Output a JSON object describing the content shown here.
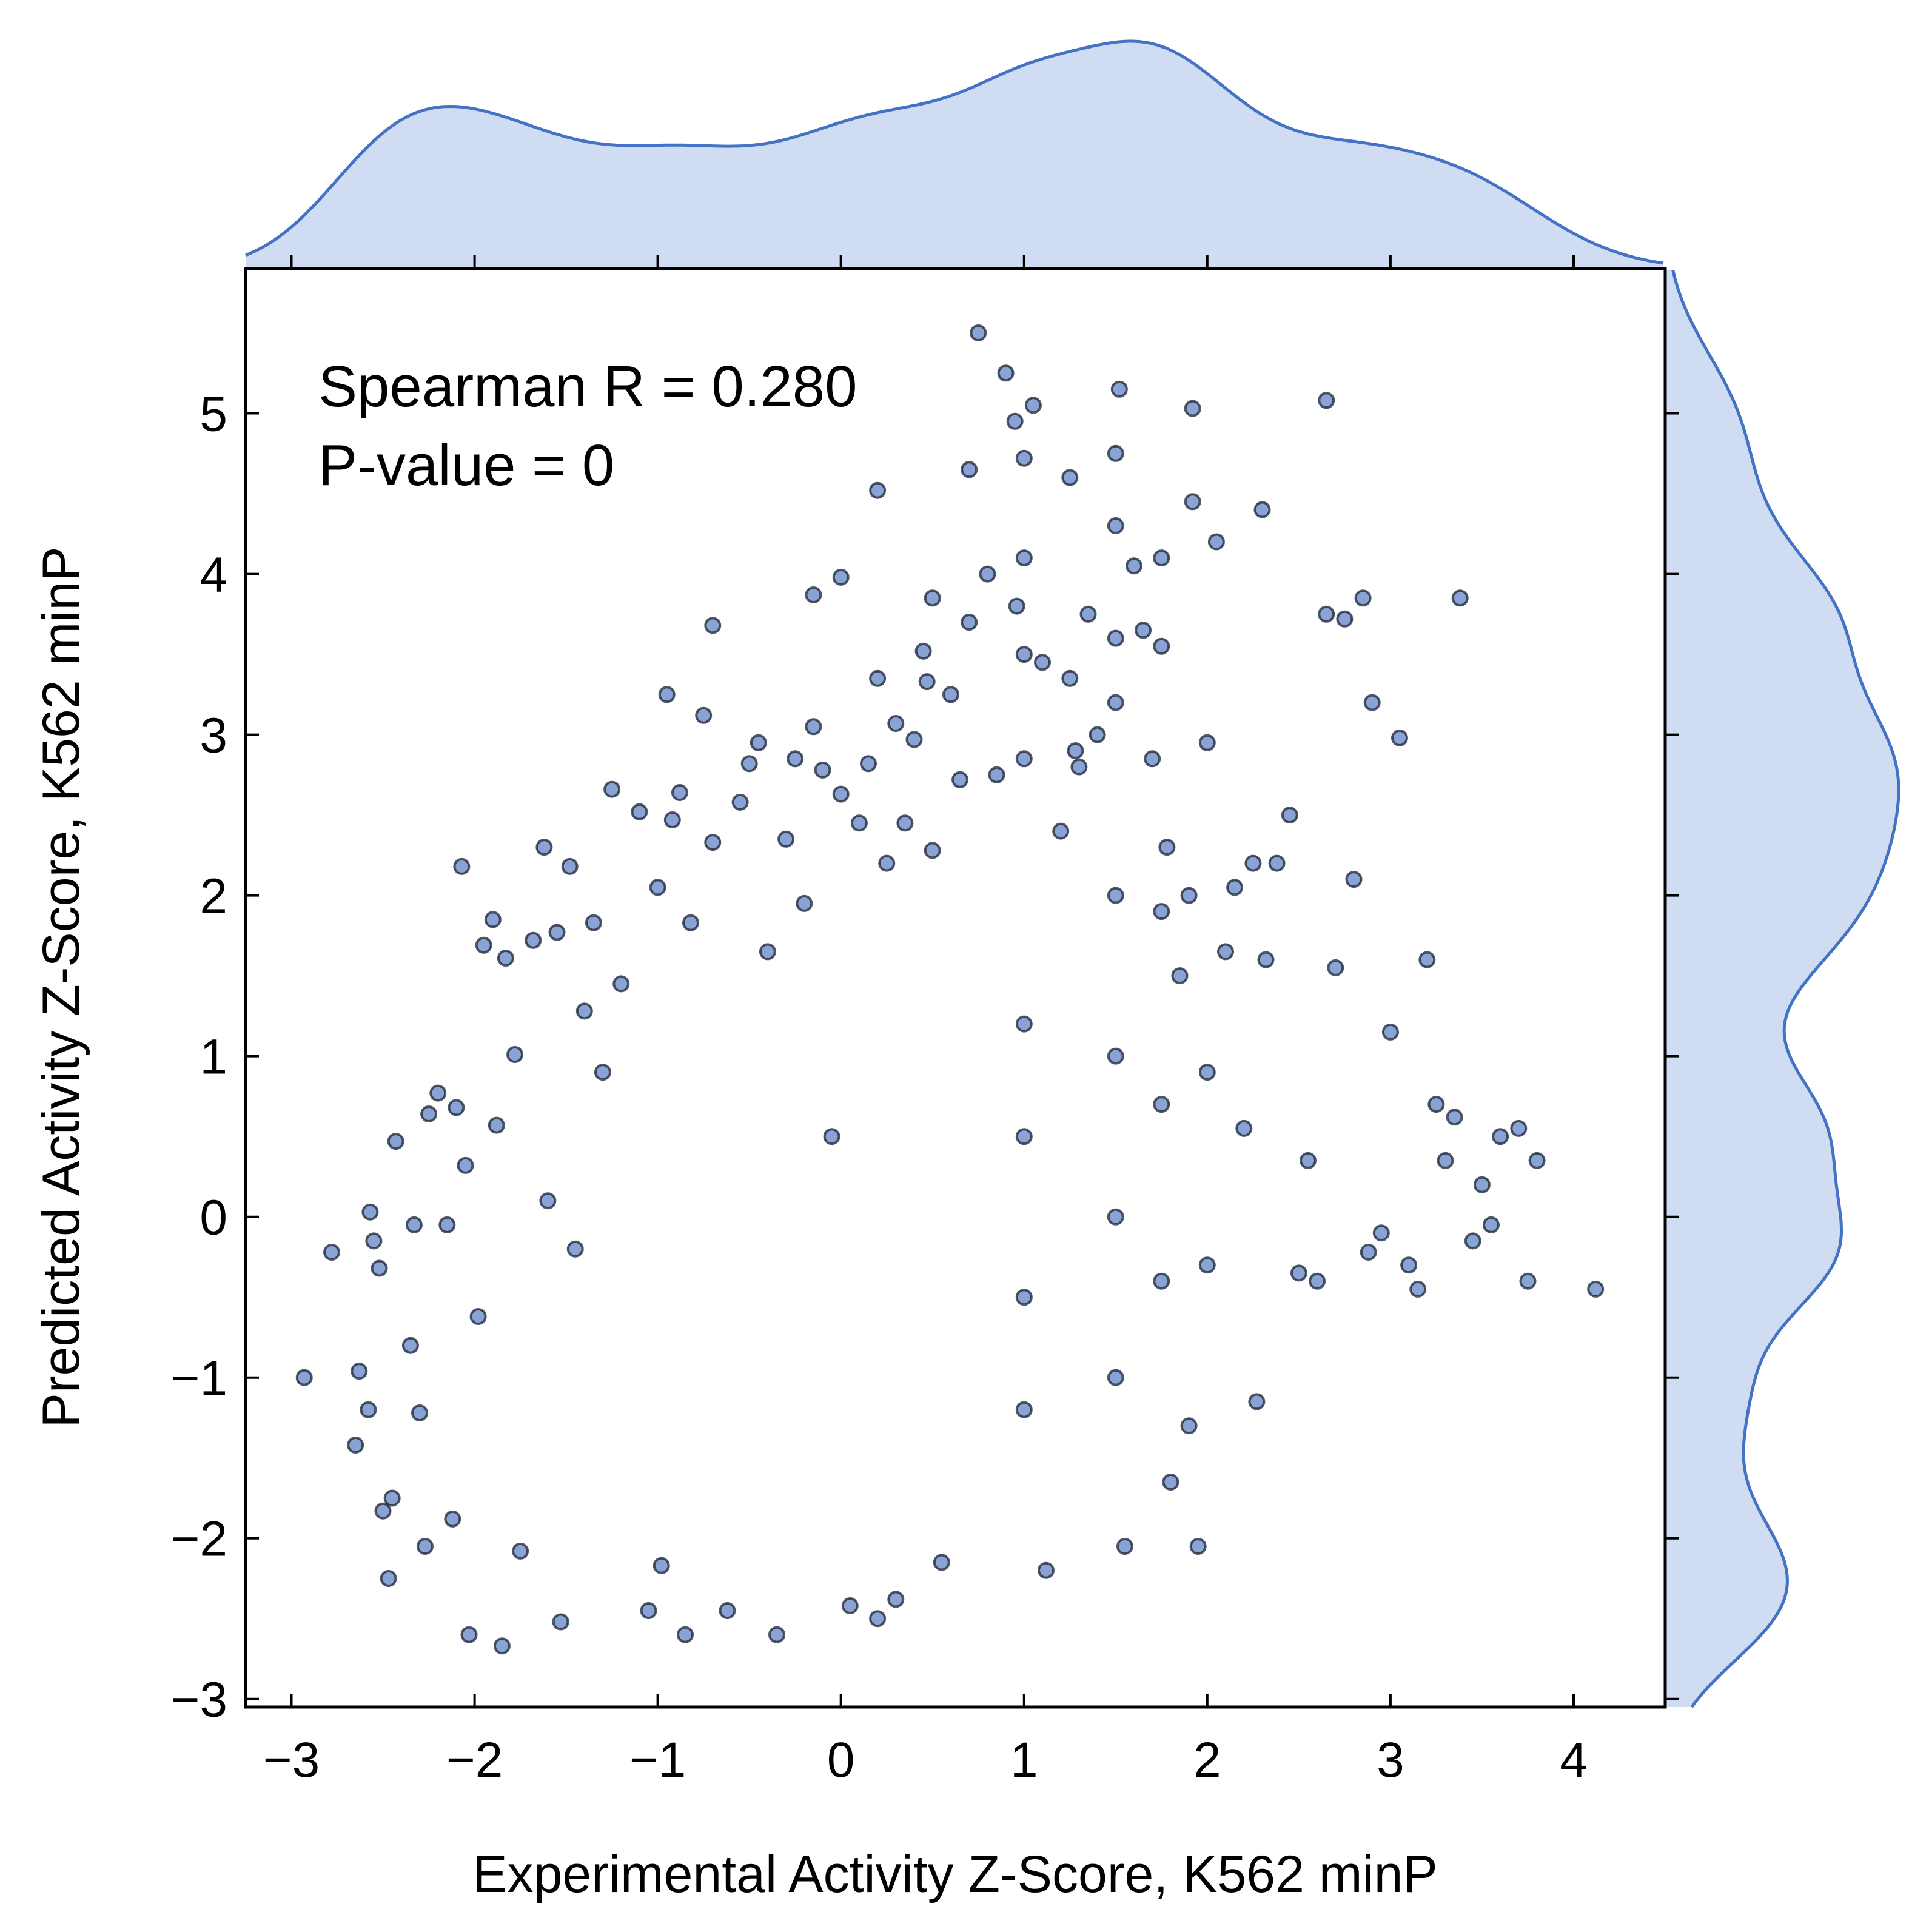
{
  "chart_data": {
    "type": "scatter",
    "xlabel": "Experimental Activity Z-Score, K562 minP",
    "ylabel": "Predicted Activity Z-Score, K562 minP",
    "xlim": [
      -3.25,
      4.5
    ],
    "ylim": [
      -3.05,
      5.9
    ],
    "x_ticks": [
      -3,
      -2,
      -1,
      0,
      1,
      2,
      3,
      4
    ],
    "y_ticks": [
      -3,
      -2,
      -1,
      0,
      1,
      2,
      3,
      4,
      5
    ],
    "x_tick_labels": [
      "−3",
      "−2",
      "−1",
      "0",
      "1",
      "2",
      "3",
      "4"
    ],
    "y_tick_labels": [
      "−3",
      "−2",
      "−1",
      "0",
      "1",
      "2",
      "3",
      "4",
      "5"
    ],
    "grid": false,
    "legend": "none",
    "annotations": [
      "Spearman R = 0.280",
      "P-value = 0"
    ],
    "marker_fill": "#5b7fc4",
    "marker_edge": "#1a2233",
    "kde_color": "#4472c4",
    "kde_fill": "#cfdcf2",
    "points": [
      [
        -2.93,
        -1.0
      ],
      [
        -2.78,
        -0.22
      ],
      [
        -2.65,
        -1.42
      ],
      [
        -2.63,
        -0.96
      ],
      [
        -2.58,
        -1.2
      ],
      [
        -2.57,
        0.03
      ],
      [
        -2.55,
        -0.15
      ],
      [
        -2.52,
        -0.32
      ],
      [
        -2.5,
        -1.83
      ],
      [
        -2.47,
        -2.25
      ],
      [
        -2.45,
        -1.75
      ],
      [
        -2.43,
        0.47
      ],
      [
        -2.35,
        -0.8
      ],
      [
        -2.33,
        -0.05
      ],
      [
        -2.3,
        -1.22
      ],
      [
        -2.27,
        -2.05
      ],
      [
        -2.25,
        0.64
      ],
      [
        -2.2,
        0.77
      ],
      [
        -2.15,
        -0.05
      ],
      [
        -2.12,
        -1.88
      ],
      [
        -2.1,
        0.68
      ],
      [
        -2.07,
        2.18
      ],
      [
        -2.05,
        0.32
      ],
      [
        -2.03,
        -2.6
      ],
      [
        -1.98,
        -0.62
      ],
      [
        -1.95,
        1.69
      ],
      [
        -1.9,
        1.85
      ],
      [
        -1.88,
        0.57
      ],
      [
        -1.85,
        -2.67
      ],
      [
        -1.83,
        1.61
      ],
      [
        -1.78,
        1.01
      ],
      [
        -1.75,
        -2.08
      ],
      [
        -1.68,
        1.72
      ],
      [
        -1.62,
        2.3
      ],
      [
        -1.6,
        0.1
      ],
      [
        -1.55,
        1.77
      ],
      [
        -1.53,
        -2.52
      ],
      [
        -1.48,
        2.18
      ],
      [
        -1.45,
        -0.2
      ],
      [
        -1.4,
        1.28
      ],
      [
        -1.35,
        1.83
      ],
      [
        -1.3,
        0.9
      ],
      [
        -1.25,
        2.66
      ],
      [
        -1.2,
        1.45
      ],
      [
        -1.1,
        2.52
      ],
      [
        -1.05,
        -2.45
      ],
      [
        -1.0,
        2.05
      ],
      [
        -0.98,
        -2.17
      ],
      [
        -0.95,
        3.25
      ],
      [
        -0.92,
        2.47
      ],
      [
        -0.88,
        2.64
      ],
      [
        -0.85,
        -2.6
      ],
      [
        -0.82,
        1.83
      ],
      [
        -0.75,
        3.12
      ],
      [
        -0.7,
        2.33
      ],
      [
        -0.7,
        3.68
      ],
      [
        -0.62,
        -2.45
      ],
      [
        -0.55,
        2.58
      ],
      [
        -0.5,
        2.82
      ],
      [
        -0.45,
        2.95
      ],
      [
        -0.4,
        1.65
      ],
      [
        -0.35,
        -2.6
      ],
      [
        -0.3,
        2.35
      ],
      [
        -0.25,
        2.85
      ],
      [
        -0.2,
        1.95
      ],
      [
        -0.15,
        3.05
      ],
      [
        -0.15,
        3.87
      ],
      [
        -0.1,
        2.78
      ],
      [
        -0.05,
        0.5
      ],
      [
        0.0,
        2.63
      ],
      [
        0.0,
        3.98
      ],
      [
        0.05,
        -2.42
      ],
      [
        0.1,
        2.45
      ],
      [
        0.15,
        2.82
      ],
      [
        0.2,
        -2.5
      ],
      [
        0.2,
        3.35
      ],
      [
        0.2,
        4.52
      ],
      [
        0.25,
        2.2
      ],
      [
        0.3,
        -2.38
      ],
      [
        0.3,
        3.07
      ],
      [
        0.35,
        2.45
      ],
      [
        0.4,
        2.97
      ],
      [
        0.45,
        3.52
      ],
      [
        0.47,
        3.33
      ],
      [
        0.5,
        2.28
      ],
      [
        0.5,
        3.85
      ],
      [
        0.55,
        -2.15
      ],
      [
        0.6,
        3.25
      ],
      [
        0.65,
        2.72
      ],
      [
        0.7,
        3.7
      ],
      [
        0.7,
        4.65
      ],
      [
        0.75,
        5.5
      ],
      [
        0.8,
        4.0
      ],
      [
        0.85,
        2.75
      ],
      [
        0.9,
        5.25
      ],
      [
        0.95,
        4.95
      ],
      [
        0.96,
        3.8
      ],
      [
        1.0,
        1.2
      ],
      [
        1.0,
        0.5
      ],
      [
        1.0,
        -0.5
      ],
      [
        1.0,
        -1.2
      ],
      [
        1.0,
        2.85
      ],
      [
        1.0,
        3.5
      ],
      [
        1.0,
        4.1
      ],
      [
        1.0,
        4.72
      ],
      [
        1.05,
        5.05
      ],
      [
        1.1,
        3.45
      ],
      [
        1.12,
        -2.2
      ],
      [
        1.2,
        2.4
      ],
      [
        1.25,
        3.35
      ],
      [
        1.25,
        4.6
      ],
      [
        1.28,
        2.9
      ],
      [
        1.3,
        2.8
      ],
      [
        1.35,
        3.75
      ],
      [
        1.4,
        3.0
      ],
      [
        1.5,
        2.0
      ],
      [
        1.5,
        1.0
      ],
      [
        1.5,
        0.0
      ],
      [
        1.5,
        -1.0
      ],
      [
        1.5,
        3.2
      ],
      [
        1.5,
        3.6
      ],
      [
        1.5,
        4.3
      ],
      [
        1.5,
        4.75
      ],
      [
        1.52,
        5.15
      ],
      [
        1.55,
        -2.05
      ],
      [
        1.6,
        4.05
      ],
      [
        1.65,
        3.65
      ],
      [
        1.7,
        2.85
      ],
      [
        1.75,
        1.9
      ],
      [
        1.75,
        0.7
      ],
      [
        1.75,
        -0.4
      ],
      [
        1.75,
        3.55
      ],
      [
        1.75,
        4.1
      ],
      [
        1.78,
        2.3
      ],
      [
        1.8,
        -1.65
      ],
      [
        1.85,
        1.5
      ],
      [
        1.9,
        2.0
      ],
      [
        1.9,
        -1.3
      ],
      [
        1.92,
        4.45
      ],
      [
        1.92,
        5.03
      ],
      [
        1.95,
        -2.05
      ],
      [
        2.0,
        0.9
      ],
      [
        2.0,
        -0.3
      ],
      [
        2.0,
        2.95
      ],
      [
        2.05,
        4.2
      ],
      [
        2.1,
        1.65
      ],
      [
        2.15,
        2.05
      ],
      [
        2.2,
        0.55
      ],
      [
        2.25,
        2.2
      ],
      [
        2.27,
        -1.15
      ],
      [
        2.3,
        4.4
      ],
      [
        2.32,
        1.6
      ],
      [
        2.38,
        2.2
      ],
      [
        2.45,
        2.5
      ],
      [
        2.5,
        -0.35
      ],
      [
        2.55,
        0.35
      ],
      [
        2.6,
        -0.4
      ],
      [
        2.65,
        3.75
      ],
      [
        2.65,
        5.08
      ],
      [
        2.7,
        1.55
      ],
      [
        2.75,
        3.72
      ],
      [
        2.8,
        2.1
      ],
      [
        2.85,
        3.85
      ],
      [
        2.88,
        -0.22
      ],
      [
        2.9,
        3.2
      ],
      [
        2.95,
        -0.1
      ],
      [
        3.0,
        1.15
      ],
      [
        3.05,
        2.98
      ],
      [
        3.1,
        -0.3
      ],
      [
        3.15,
        -0.45
      ],
      [
        3.2,
        1.6
      ],
      [
        3.25,
        0.7
      ],
      [
        3.3,
        0.35
      ],
      [
        3.35,
        0.62
      ],
      [
        3.38,
        3.85
      ],
      [
        3.45,
        -0.15
      ],
      [
        3.5,
        0.2
      ],
      [
        3.55,
        -0.05
      ],
      [
        3.6,
        0.5
      ],
      [
        3.7,
        0.55
      ],
      [
        3.75,
        -0.4
      ],
      [
        3.8,
        0.35
      ],
      [
        4.12,
        -0.45
      ]
    ]
  }
}
